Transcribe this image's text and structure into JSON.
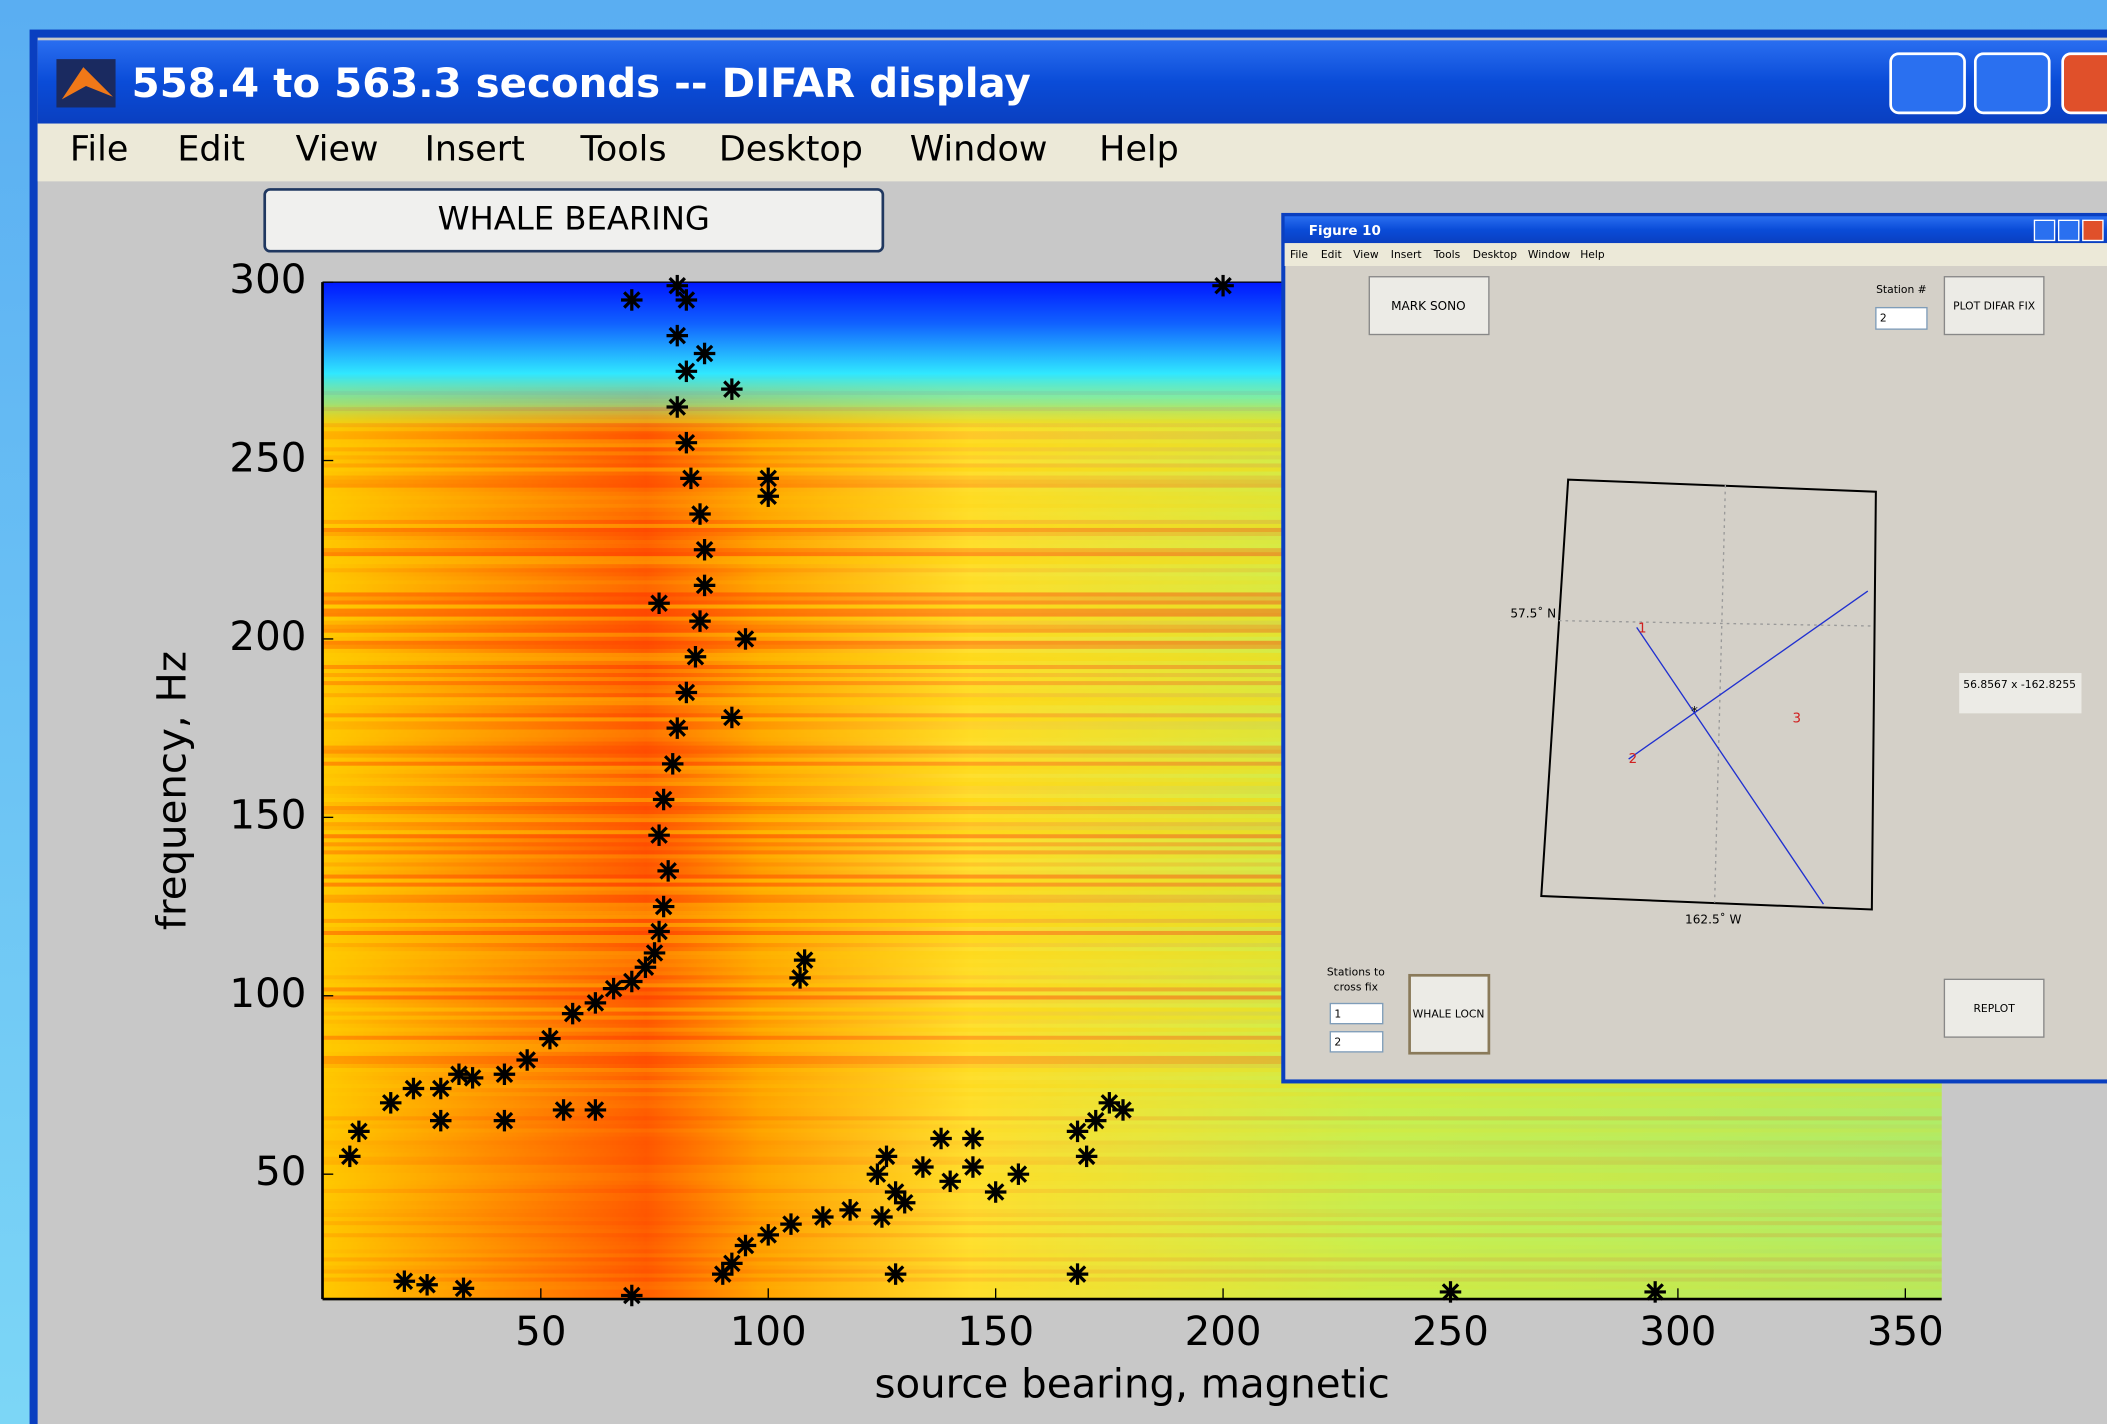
{
  "window": {
    "title": "558.4 to 563.3 seconds -- DIFAR display",
    "menu": [
      "File",
      "Edit",
      "View",
      "Insert",
      "Tools",
      "Desktop",
      "Window",
      "Help"
    ],
    "button": "WHALE BEARING"
  },
  "chart_data": {
    "type": "scatter",
    "xlabel": "source bearing, magnetic",
    "ylabel": "frequency, Hz",
    "color": "#000000",
    "xlim": [
      2,
      358
    ],
    "ylim": [
      15,
      300
    ],
    "xticks": [
      50,
      100,
      150,
      200,
      250,
      300,
      350
    ],
    "yticks": [
      50,
      100,
      150,
      200,
      250,
      300
    ],
    "x": [
      90,
      92,
      95,
      100,
      105,
      112,
      118,
      125,
      130,
      128,
      124,
      126,
      140,
      145,
      150,
      155,
      138,
      145,
      168,
      172,
      175,
      170,
      178,
      134,
      20,
      25,
      33,
      128,
      168,
      250,
      295,
      70,
      8,
      10,
      17,
      22,
      28,
      32,
      35,
      42,
      47,
      52,
      57,
      62,
      66,
      70,
      73,
      75,
      76,
      77,
      78,
      76,
      77,
      79,
      80,
      82,
      84,
      85,
      86,
      86,
      85,
      83,
      82,
      80,
      82,
      80,
      82,
      80,
      28,
      42,
      55,
      62,
      108,
      107,
      100,
      100,
      76,
      95,
      92,
      70,
      200,
      86,
      92
    ],
    "values": [
      22,
      25,
      30,
      33,
      36,
      38,
      40,
      38,
      42,
      45,
      50,
      55,
      48,
      52,
      45,
      50,
      60,
      60,
      62,
      65,
      70,
      55,
      68,
      52,
      20,
      19,
      18,
      22,
      22,
      17,
      17,
      16,
      55,
      62,
      70,
      74,
      74,
      78,
      77,
      78,
      82,
      88,
      95,
      98,
      102,
      104,
      108,
      112,
      118,
      125,
      135,
      145,
      155,
      165,
      175,
      185,
      195,
      205,
      215,
      225,
      235,
      245,
      255,
      265,
      275,
      285,
      295,
      299,
      65,
      65,
      68,
      68,
      110,
      105,
      245,
      240,
      210,
      200,
      178,
      295,
      299,
      280,
      270
    ]
  },
  "figure10": {
    "title": "Figure 10",
    "menu": [
      "File",
      "Edit",
      "View",
      "Insert",
      "Tools",
      "Desktop",
      "Window",
      "Help"
    ],
    "mark_button": "MARK SONO",
    "station_label": "Station #",
    "station_select": "2",
    "plot_button": "PLOT DIFAR FIX",
    "lat_label": "57.5˚ N",
    "lon_label": "162.5˚ W",
    "stations": [
      "1",
      "2",
      "3"
    ],
    "readout": "56.8567 x -162.8255",
    "cross_label": [
      "Stations to",
      "cross fix"
    ],
    "cross_selects": [
      "1",
      "2"
    ],
    "locn_button": "WHALE LOCN",
    "replot_button": "REPLOT"
  }
}
